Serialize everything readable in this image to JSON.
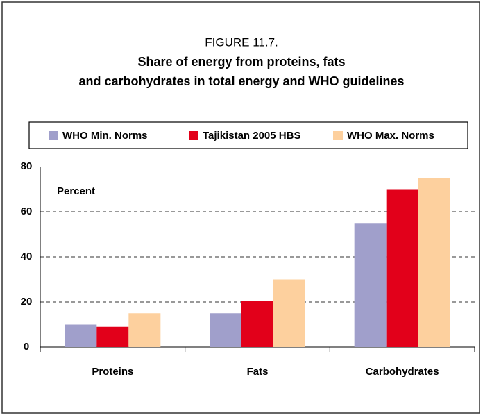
{
  "chart_data": {
    "type": "bar",
    "label": "FIGURE 11.7.",
    "title": "Share of energy from proteins, fats",
    "title_line2": "and carbohydrates in total energy and WHO guidelines",
    "y_annotation": "Percent",
    "categories": [
      "Proteins",
      "Fats",
      "Carbohydrates"
    ],
    "series": [
      {
        "name": "WHO Min. Norms",
        "color": "#a09fcb",
        "values": [
          10,
          15,
          55
        ]
      },
      {
        "name": "Tajikistan 2005 HBS",
        "color": "#e2001a",
        "values": [
          9,
          20.5,
          70
        ]
      },
      {
        "name": "WHO Max. Norms",
        "color": "#fdd09e",
        "values": [
          15,
          30,
          75
        ]
      }
    ],
    "ylim": [
      0,
      80
    ],
    "yticks": [
      0,
      20,
      40,
      60,
      80
    ],
    "grid": true
  }
}
